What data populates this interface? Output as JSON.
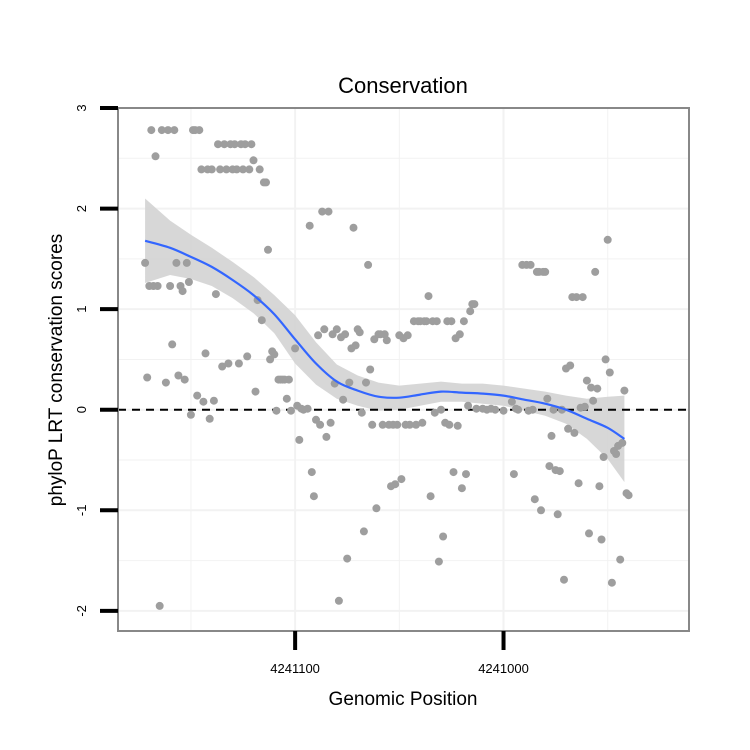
{
  "chart_data": {
    "type": "scatter",
    "title": "Conservation",
    "xlabel": "Genomic Position",
    "ylabel": "phyloP LRT conservation scores",
    "xlim": [
      4241185,
      4240911
    ],
    "ylim": [
      -2.2,
      3.0
    ],
    "x_reversed": true,
    "x_ticks": [
      4241100,
      4241000
    ],
    "x_tick_labels": [
      "4241100",
      "4241000"
    ],
    "y_ticks": [
      -2,
      -1,
      0,
      1,
      2,
      3
    ],
    "y_tick_labels": [
      "-2",
      "-1",
      "0",
      "1",
      "2",
      "3"
    ],
    "grid": true,
    "legend": "none",
    "reference_line": {
      "y": 0,
      "style": "dashed"
    },
    "colors": {
      "points": "#9e9e9e",
      "smooth_line": "#3366ff",
      "ribbon": "#d3d3d3",
      "panel_border": "#888888",
      "grid": "#f2f2f2"
    },
    "series": [
      {
        "type": "scatter",
        "points": [
          [
            4241172,
            1.46
          ],
          [
            4241171,
            0.32
          ],
          [
            4241170,
            1.23
          ],
          [
            4241169,
            2.78
          ],
          [
            4241168,
            1.23
          ],
          [
            4241167,
            2.52
          ],
          [
            4241166,
            1.23
          ],
          [
            4241165,
            -1.95
          ],
          [
            4241164,
            2.78
          ],
          [
            4241162,
            0.27
          ],
          [
            4241161,
            2.78
          ],
          [
            4241160,
            1.23
          ],
          [
            4241159,
            0.65
          ],
          [
            4241158,
            2.78
          ],
          [
            4241157,
            1.46
          ],
          [
            4241156,
            0.34
          ],
          [
            4241155,
            1.23
          ],
          [
            4241154,
            1.18
          ],
          [
            4241153,
            0.3
          ],
          [
            4241152,
            1.46
          ],
          [
            4241151,
            1.27
          ],
          [
            4241150,
            -0.05
          ],
          [
            4241149,
            2.78
          ],
          [
            4241148,
            2.78
          ],
          [
            4241147,
            0.14
          ],
          [
            4241146,
            2.78
          ],
          [
            4241145,
            2.39
          ],
          [
            4241144,
            0.08
          ],
          [
            4241143,
            0.56
          ],
          [
            4241142,
            2.39
          ],
          [
            4241141,
            -0.09
          ],
          [
            4241140,
            2.39
          ],
          [
            4241139,
            0.09
          ],
          [
            4241138,
            1.15
          ],
          [
            4241137,
            2.64
          ],
          [
            4241136,
            2.39
          ],
          [
            4241135,
            0.43
          ],
          [
            4241134,
            2.64
          ],
          [
            4241133,
            2.39
          ],
          [
            4241132,
            0.46
          ],
          [
            4241131,
            2.64
          ],
          [
            4241130,
            2.39
          ],
          [
            4241129,
            2.64
          ],
          [
            4241128,
            2.39
          ],
          [
            4241127,
            0.46
          ],
          [
            4241126,
            2.64
          ],
          [
            4241125,
            2.39
          ],
          [
            4241124,
            2.64
          ],
          [
            4241123,
            0.53
          ],
          [
            4241122,
            2.39
          ],
          [
            4241121,
            2.64
          ],
          [
            4241120,
            2.48
          ],
          [
            4241119,
            0.18
          ],
          [
            4241118,
            1.09
          ],
          [
            4241117,
            2.39
          ],
          [
            4241116,
            0.89
          ],
          [
            4241115,
            2.26
          ],
          [
            4241114,
            2.26
          ],
          [
            4241113,
            1.59
          ],
          [
            4241112,
            0.5
          ],
          [
            4241111,
            0.58
          ],
          [
            4241110,
            0.55
          ],
          [
            4241109,
            -0.01
          ],
          [
            4241108,
            0.3
          ],
          [
            4241107,
            0.3
          ],
          [
            4241106,
            0.3
          ],
          [
            4241105,
            0.3
          ],
          [
            4241104,
            0.11
          ],
          [
            4241103,
            0.3
          ],
          [
            4241102,
            -0.01
          ],
          [
            4241100,
            0.61
          ],
          [
            4241099,
            0.04
          ],
          [
            4241098,
            -0.3
          ],
          [
            4241097,
            0.01
          ],
          [
            4241096,
            0.0
          ],
          [
            4241094,
            0.01
          ],
          [
            4241093,
            1.83
          ],
          [
            4241092,
            -0.62
          ],
          [
            4241091,
            -0.86
          ],
          [
            4241090,
            -0.1
          ],
          [
            4241089,
            0.74
          ],
          [
            4241088,
            -0.15
          ],
          [
            4241087,
            1.97
          ],
          [
            4241086,
            0.8
          ],
          [
            4241085,
            -0.27
          ],
          [
            4241084,
            1.97
          ],
          [
            4241083,
            -0.13
          ],
          [
            4241082,
            0.75
          ],
          [
            4241081,
            0.26
          ],
          [
            4241080,
            0.8
          ],
          [
            4241079,
            -1.9
          ],
          [
            4241078,
            0.72
          ],
          [
            4241077,
            0.1
          ],
          [
            4241076,
            0.75
          ],
          [
            4241075,
            -1.48
          ],
          [
            4241074,
            0.27
          ],
          [
            4241073,
            0.61
          ],
          [
            4241072,
            1.81
          ],
          [
            4241071,
            0.64
          ],
          [
            4241070,
            0.8
          ],
          [
            4241069,
            0.77
          ],
          [
            4241068,
            -0.03
          ],
          [
            4241067,
            -1.21
          ],
          [
            4241066,
            0.27
          ],
          [
            4241065,
            1.44
          ],
          [
            4241064,
            0.4
          ],
          [
            4241063,
            -0.15
          ],
          [
            4241062,
            0.7
          ],
          [
            4241061,
            -0.98
          ],
          [
            4241060,
            0.75
          ],
          [
            4241059,
            0.75
          ],
          [
            4241058,
            -0.15
          ],
          [
            4241057,
            0.75
          ],
          [
            4241056,
            0.69
          ],
          [
            4241055,
            -0.15
          ],
          [
            4241054,
            -0.76
          ],
          [
            4241053,
            -0.15
          ],
          [
            4241052,
            -0.74
          ],
          [
            4241051,
            -0.15
          ],
          [
            4241050,
            0.74
          ],
          [
            4241049,
            -0.69
          ],
          [
            4241048,
            0.71
          ],
          [
            4241047,
            -0.15
          ],
          [
            4241046,
            0.74
          ],
          [
            4241045,
            -0.15
          ],
          [
            4241043,
            0.88
          ],
          [
            4241042,
            -0.15
          ],
          [
            4241041,
            0.88
          ],
          [
            4241040,
            0.88
          ],
          [
            4241039,
            -0.13
          ],
          [
            4241038,
            0.88
          ],
          [
            4241037,
            0.88
          ],
          [
            4241036,
            1.13
          ],
          [
            4241035,
            -0.86
          ],
          [
            4241034,
            0.88
          ],
          [
            4241033,
            -0.03
          ],
          [
            4241032,
            0.88
          ],
          [
            4241031,
            -1.51
          ],
          [
            4241030,
            0.0
          ],
          [
            4241029,
            -1.26
          ],
          [
            4241028,
            -0.13
          ],
          [
            4241027,
            0.88
          ],
          [
            4241026,
            -0.15
          ],
          [
            4241025,
            0.88
          ],
          [
            4241024,
            -0.62
          ],
          [
            4241023,
            0.71
          ],
          [
            4241022,
            -0.16
          ],
          [
            4241021,
            0.75
          ],
          [
            4241020,
            -0.78
          ],
          [
            4241019,
            0.88
          ],
          [
            4241018,
            -0.64
          ],
          [
            4241017,
            0.04
          ],
          [
            4241016,
            0.98
          ],
          [
            4241015,
            1.05
          ],
          [
            4241014,
            1.05
          ],
          [
            4241013,
            0.01
          ],
          [
            4241010,
            0.01
          ],
          [
            4241008,
            0.0
          ],
          [
            4241006,
            0.01
          ],
          [
            4241004,
            0.0
          ],
          [
            4241000,
            -0.01
          ],
          [
            4240996,
            0.08
          ],
          [
            4240995,
            -0.64
          ],
          [
            4240994,
            0.01
          ],
          [
            4240993,
            0.0
          ],
          [
            4240991,
            1.44
          ],
          [
            4240989,
            1.44
          ],
          [
            4240988,
            -0.01
          ],
          [
            4240987,
            1.44
          ],
          [
            4240986,
            0.0
          ],
          [
            4240985,
            -0.89
          ],
          [
            4240984,
            1.37
          ],
          [
            4240983,
            1.37
          ],
          [
            4240982,
            -1.0
          ],
          [
            4240981,
            1.37
          ],
          [
            4240980,
            1.37
          ],
          [
            4240979,
            0.11
          ],
          [
            4240978,
            -0.56
          ],
          [
            4240977,
            -0.26
          ],
          [
            4240976,
            0.0
          ],
          [
            4240975,
            -0.6
          ],
          [
            4240974,
            -1.04
          ],
          [
            4240973,
            -0.61
          ],
          [
            4240972,
            0.0
          ],
          [
            4240971,
            -1.69
          ],
          [
            4240970,
            0.41
          ],
          [
            4240969,
            -0.19
          ],
          [
            4240968,
            0.44
          ],
          [
            4240967,
            1.12
          ],
          [
            4240966,
            -0.23
          ],
          [
            4240965,
            1.12
          ],
          [
            4240964,
            -0.73
          ],
          [
            4240963,
            0.02
          ],
          [
            4240962,
            1.12
          ],
          [
            4240961,
            0.03
          ],
          [
            4240960,
            0.29
          ],
          [
            4240959,
            -1.23
          ],
          [
            4240958,
            0.22
          ],
          [
            4240957,
            0.09
          ],
          [
            4240956,
            1.37
          ],
          [
            4240955,
            0.21
          ],
          [
            4240954,
            -0.76
          ],
          [
            4240953,
            -1.29
          ],
          [
            4240952,
            -0.47
          ],
          [
            4240951,
            0.5
          ],
          [
            4240950,
            1.69
          ],
          [
            4240949,
            0.37
          ],
          [
            4240948,
            -1.72
          ],
          [
            4240947,
            -0.41
          ],
          [
            4240946,
            -0.44
          ],
          [
            4240945,
            -0.36
          ],
          [
            4240944,
            -1.49
          ],
          [
            4240943,
            -0.33
          ],
          [
            4240942,
            0.19
          ],
          [
            4240941,
            -0.83
          ],
          [
            4240940,
            -0.85
          ]
        ]
      },
      {
        "type": "smooth",
        "x": [
          4241172,
          4241160,
          4241150,
          4241140,
          4241130,
          4241120,
          4241110,
          4241100,
          4241090,
          4241080,
          4241070,
          4241060,
          4241050,
          4241040,
          4241030,
          4241020,
          4241010,
          4241000,
          4240990,
          4240980,
          4240970,
          4240960,
          4240950,
          4240942
        ],
        "y": [
          1.68,
          1.61,
          1.52,
          1.42,
          1.29,
          1.14,
          0.95,
          0.7,
          0.46,
          0.28,
          0.19,
          0.13,
          0.12,
          0.15,
          0.18,
          0.17,
          0.16,
          0.14,
          0.1,
          0.06,
          0.0,
          -0.09,
          -0.18,
          -0.29
        ],
        "lo": [
          1.26,
          1.34,
          1.3,
          1.23,
          1.11,
          0.96,
          0.76,
          0.46,
          0.25,
          0.11,
          0.04,
          -0.01,
          0.0,
          0.04,
          0.08,
          0.08,
          0.06,
          0.04,
          -0.01,
          -0.06,
          -0.14,
          -0.29,
          -0.49,
          -0.72
        ],
        "hi": [
          2.1,
          1.88,
          1.74,
          1.61,
          1.47,
          1.32,
          1.14,
          0.94,
          0.67,
          0.45,
          0.34,
          0.27,
          0.24,
          0.26,
          0.28,
          0.26,
          0.26,
          0.24,
          0.21,
          0.18,
          0.14,
          0.11,
          0.13,
          0.14
        ]
      }
    ]
  }
}
